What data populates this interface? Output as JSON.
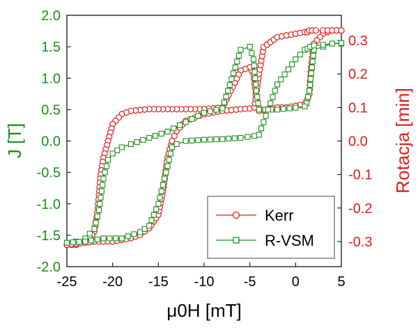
{
  "chart_data": {
    "type": "line",
    "title": "",
    "xlabel": "μ0H [mT]",
    "ylabel_left": "J [T]",
    "ylabel_right": "Rotacja [min]",
    "xlim": [
      -25,
      5
    ],
    "ylim_left": [
      -2.0,
      2.0
    ],
    "ylim_right": [
      -0.375,
      0.375
    ],
    "x_ticks": [
      "-25",
      "-20",
      "-15",
      "-10",
      "-5",
      "0",
      "5"
    ],
    "y_left_ticks": [
      "2.0",
      "1.5",
      "1.0",
      "0.5",
      "0.0",
      "-0.5",
      "-1.0",
      "-1.5",
      "-2.0"
    ],
    "y_right_ticks": [
      "0.3",
      "0.2",
      "0.1",
      "0.0",
      "-0.1",
      "-0.2",
      "-0.3"
    ],
    "grid": false,
    "legend_position": "bottom-right",
    "colors": {
      "left_axis": "#1e8c1e",
      "right_axis": "#e31a1a",
      "kerr": "#e31a1a",
      "rvsm": "#1e8c1e"
    },
    "series": [
      {
        "name": "Kerr",
        "axis": "right",
        "marker": "circle",
        "color": "#e31a1a",
        "branches": [
          {
            "x": [
              5,
              4,
              3,
              2,
              1.7,
              1.5,
              1.2,
              1,
              0,
              -1,
              -2,
              -3,
              -4,
              -4.3,
              -4.6,
              -5,
              -6,
              -8,
              -10,
              -12,
              -14,
              -16,
              -18,
              -19,
              -20,
              -20.5,
              -21,
              -21.3,
              -21.6,
              -22,
              -22.5,
              -23,
              -24,
              -25
            ],
            "y": [
              0.33,
              0.33,
              0.32,
              0.29,
              0.22,
              0.14,
              0.12,
              0.11,
              0.105,
              0.1,
              0.1,
              0.095,
              0.09,
              0.13,
              0.2,
              0.22,
              0.21,
              0.1,
              0.095,
              0.095,
              0.095,
              0.095,
              0.09,
              0.08,
              0.05,
              0.0,
              -0.05,
              -0.1,
              -0.2,
              -0.27,
              -0.29,
              -0.3,
              -0.31,
              -0.31
            ]
          },
          {
            "x": [
              -25,
              -22,
              -20,
              -18,
              -17,
              -16,
              -15,
              -14.5,
              -14,
              -13.5,
              -13,
              -12,
              -10,
              -8,
              -6,
              -5,
              -4.5,
              -4,
              -3.5,
              -2,
              0,
              1,
              1.3,
              1.5,
              1.8,
              2.2,
              3,
              4,
              5
            ],
            "y": [
              -0.31,
              -0.3,
              -0.3,
              -0.29,
              -0.28,
              -0.26,
              -0.22,
              -0.15,
              -0.05,
              0.0,
              0.03,
              0.06,
              0.08,
              0.09,
              0.095,
              0.097,
              0.1,
              0.2,
              0.28,
              0.31,
              0.32,
              0.325,
              0.325,
              0.33,
              0.33,
              0.33,
              0.33,
              0.33,
              0.33
            ]
          }
        ]
      },
      {
        "name": "R-VSM",
        "axis": "left",
        "marker": "square",
        "color": "#1e8c1e",
        "branches": [
          {
            "x": [
              5,
              4,
              3,
              2,
              1.5,
              1.2,
              1,
              0,
              -2,
              -4,
              -4.3,
              -4.6,
              -5,
              -6,
              -8,
              -10,
              -12,
              -14,
              -16,
              -18,
              -19,
              -20,
              -20.5,
              -21,
              -21.5,
              -22,
              -23,
              -24,
              -25
            ],
            "y": [
              1.55,
              1.55,
              1.5,
              1.45,
              0.8,
              0.6,
              0.55,
              0.53,
              0.5,
              0.5,
              0.8,
              1.3,
              1.5,
              1.45,
              0.52,
              0.45,
              0.3,
              0.15,
              0.05,
              -0.05,
              -0.1,
              -0.2,
              -0.3,
              -0.6,
              -1.1,
              -1.4,
              -1.55,
              -1.6,
              -1.62
            ]
          },
          {
            "x": [
              -25,
              -23,
              -21,
              -19,
              -17,
              -16,
              -15,
              -14.5,
              -14,
              -13.5,
              -13,
              -12,
              -10,
              -8,
              -6,
              -4.5,
              -4,
              -3.5,
              -2,
              0,
              1,
              1.3,
              1.6,
              2,
              3,
              4,
              5
            ],
            "y": [
              -1.62,
              -1.6,
              -1.55,
              -1.55,
              -1.45,
              -1.35,
              -1.0,
              -0.7,
              -0.4,
              -0.1,
              -0.05,
              0.0,
              0.02,
              0.03,
              0.05,
              0.08,
              0.1,
              0.3,
              0.9,
              1.3,
              1.45,
              1.47,
              1.5,
              1.52,
              1.53,
              1.55,
              1.56
            ]
          }
        ]
      }
    ]
  }
}
